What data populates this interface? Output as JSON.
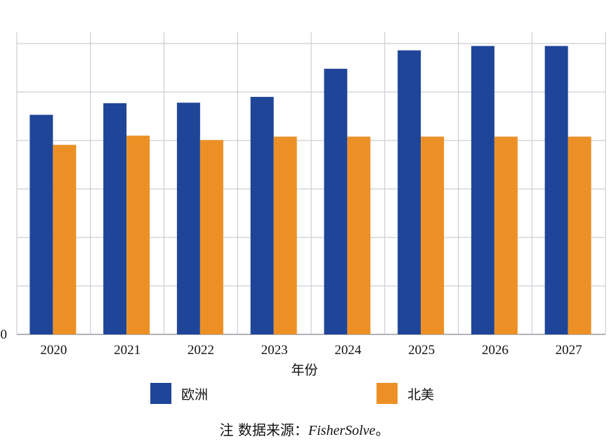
{
  "chart_data": {
    "type": "bar",
    "categories": [
      "2020",
      "2021",
      "2022",
      "2023",
      "2024",
      "2025",
      "2026",
      "2027"
    ],
    "series": [
      {
        "name": "欧洲",
        "color": "#1f4599",
        "values": [
          45.3,
          47.7,
          47.8,
          49.0,
          54.8,
          58.6,
          59.5,
          59.5
        ]
      },
      {
        "name": "北美",
        "color": "#ec9026",
        "values": [
          39.1,
          41.0,
          40.1,
          40.8,
          40.8,
          40.8,
          40.8,
          40.8
        ]
      }
    ],
    "xlabel": "年份",
    "ylabel": "",
    "ylim": [
      0,
      60
    ],
    "yticks_shown": [
      "0"
    ],
    "grid": true,
    "legend_position": "bottom"
  },
  "note": {
    "prefix": "注 数据来源：",
    "source": "FisherSolve",
    "suffix": "。"
  }
}
